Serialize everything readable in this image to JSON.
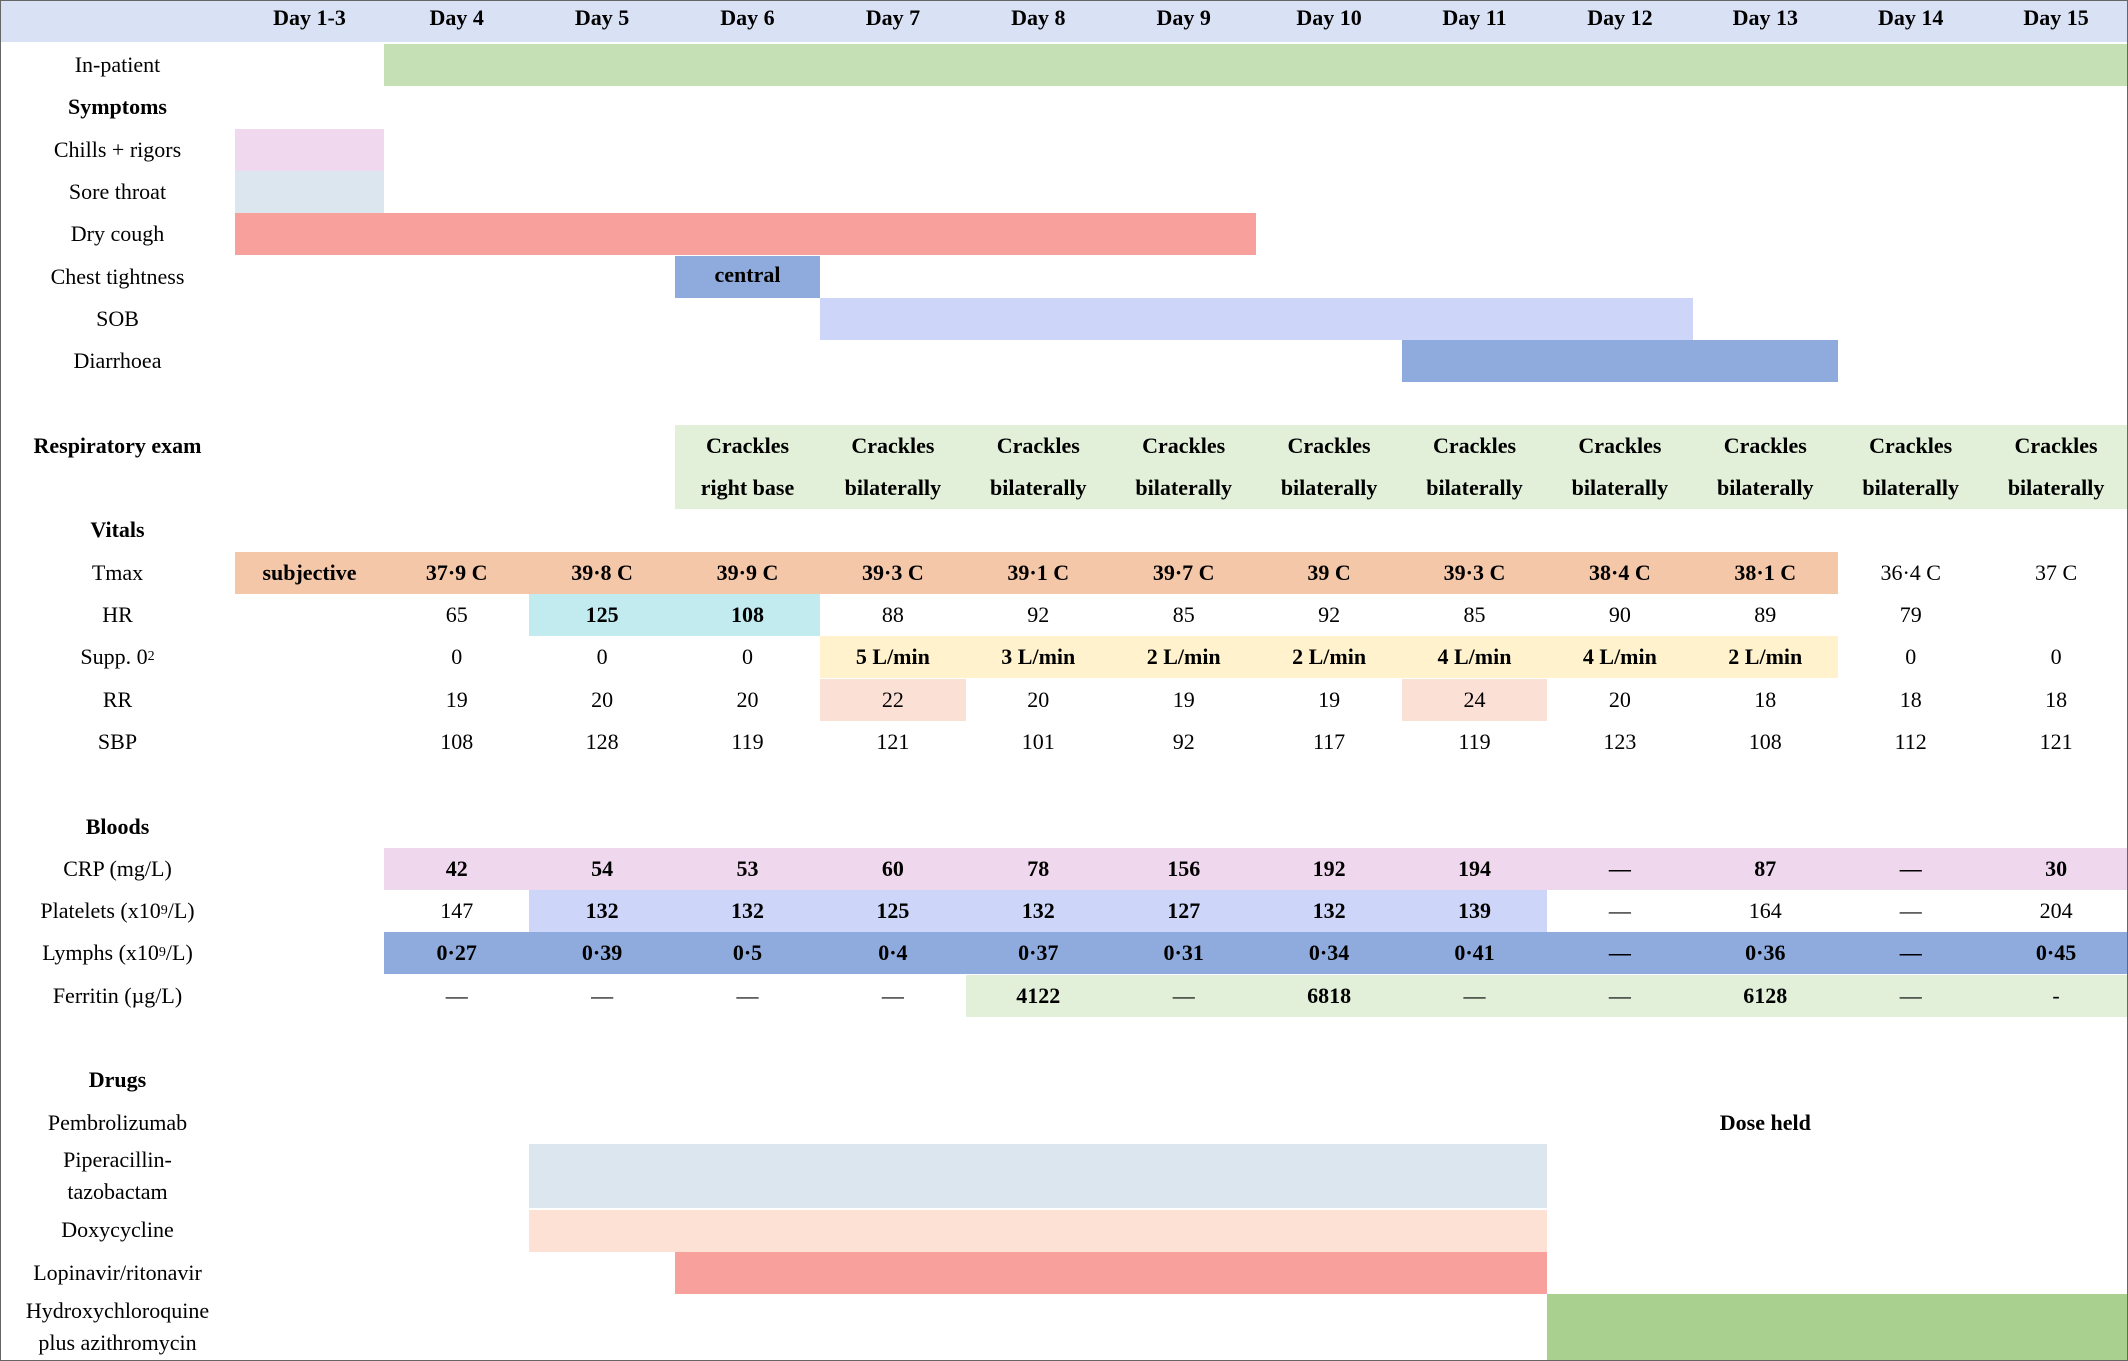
{
  "days": [
    "Day 1-3",
    "Day 4",
    "Day 5",
    "Day 6",
    "Day 7",
    "Day 8",
    "Day 9",
    "Day 10",
    "Day 11",
    "Day 12",
    "Day 13",
    "Day 14",
    "Day 15"
  ],
  "colors": {
    "header": "#d9e1f5",
    "inpatient": "#c5e0b4",
    "chills": "#f0d9ee",
    "sore_throat": "#dce6ee",
    "dry_cough": "#f8a09c",
    "chest_tightness": "#8faadc",
    "sob": "#cdd5f8",
    "diarrhoea": "#8faadc",
    "resp_exam": "#e2f0d9",
    "tmax": "#f4c7a9",
    "hr": "#c2ebf0",
    "supp_o2": "#fff2cc",
    "rr": "#fbe0d5",
    "crp": "#efd8ee",
    "platelets": "#cdd5f8",
    "lymphs": "#8faadc",
    "ferritin": "#e2f0d9",
    "piperacillin": "#dce6ee",
    "doxycycline": "#fde1d5",
    "lopinavir": "#f8a09c",
    "hcq": "#a9d08e"
  },
  "rows": {
    "inpatient": {
      "label": "In-patient"
    },
    "symptoms": {
      "label": "Symptoms"
    },
    "chills": {
      "label": "Chills + rigors"
    },
    "sore_throat": {
      "label": "Sore throat"
    },
    "dry_cough": {
      "label": "Dry cough"
    },
    "chest_tightness": {
      "label": "Chest tightness",
      "note": "central"
    },
    "sob": {
      "label": "SOB"
    },
    "diarrhoea": {
      "label": "Diarrhoea"
    },
    "resp_exam": {
      "label": "Respiratory exam",
      "values": [
        [
          "Crackles",
          "right base"
        ],
        [
          "Crackles",
          "bilaterally"
        ],
        [
          "Crackles",
          "bilaterally"
        ],
        [
          "Crackles",
          "bilaterally"
        ],
        [
          "Crackles",
          "bilaterally"
        ],
        [
          "Crackles",
          "bilaterally"
        ],
        [
          "Crackles",
          "bilaterally"
        ],
        [
          "Crackles",
          "bilaterally"
        ],
        [
          "Crackles",
          "bilaterally"
        ],
        [
          "Crackles",
          "bilaterally"
        ]
      ]
    },
    "vitals": {
      "label": "Vitals"
    },
    "tmax": {
      "label": "Tmax",
      "values": [
        "subjective",
        "37·9 C",
        "39·8 C",
        "39·9 C",
        "39·3 C",
        "39·1 C",
        "39·7 C",
        "39 C",
        "39·3 C",
        "38·4 C",
        "38·1 C",
        "36·4  C",
        "37  C"
      ]
    },
    "hr": {
      "label": "HR",
      "values": [
        "",
        "65",
        "125",
        "108",
        "88",
        "92",
        "85",
        "92",
        "85",
        "90",
        "89",
        "79",
        ""
      ]
    },
    "supp_o2": {
      "label_main": "Supp. 0",
      "label_sub": "2",
      "values": [
        "",
        "0",
        "0",
        "0",
        "5 L/min",
        "3 L/min",
        "2 L/min",
        "2 L/min",
        "4 L/min",
        "4 L/min",
        "2 L/min",
        "0",
        "0"
      ]
    },
    "rr": {
      "label": "RR",
      "values": [
        "",
        "19",
        "20",
        "20",
        "22",
        "20",
        "19",
        "19",
        "24",
        "20",
        "18",
        "18",
        "18"
      ]
    },
    "sbp": {
      "label": "SBP",
      "values": [
        "",
        "108",
        "128",
        "119",
        "121",
        "101",
        "92",
        "117",
        "119",
        "123",
        "108",
        "112",
        "121"
      ]
    },
    "bloods": {
      "label": "Bloods"
    },
    "crp": {
      "label": "CRP (mg/L)",
      "values": [
        "",
        "42",
        "54",
        "53",
        "60",
        "78",
        "156",
        "192",
        "194",
        "—",
        "87",
        "—",
        "30"
      ]
    },
    "platelets": {
      "label_main": "Platelets (x10",
      "label_sup": "9",
      "label_end": "/L)",
      "values": [
        "",
        "147",
        "132",
        "132",
        "125",
        "132",
        "127",
        "132",
        "139",
        "—",
        "164",
        "—",
        "204"
      ]
    },
    "lymphs": {
      "label_main": "Lymphs (x10",
      "label_sup": "9",
      "label_end": "/L)",
      "values": [
        "",
        "0·27",
        "0·39",
        "0·5",
        "0·4",
        "0·37",
        "0·31",
        "0·34",
        "0·41",
        "—",
        "0·36",
        "—",
        "0·45"
      ]
    },
    "ferritin": {
      "label": "Ferritin (µg/L)",
      "values": [
        "",
        "—",
        "—",
        "—",
        "—",
        "4122",
        "—",
        "6818",
        "—",
        "—",
        "6128",
        "—",
        "-"
      ]
    },
    "drugs": {
      "label": "Drugs"
    },
    "pembrolizumab": {
      "label": "Pembrolizumab",
      "note": "Dose held"
    },
    "piperacillin": {
      "label_1": "Piperacillin-",
      "label_2": "tazobactam"
    },
    "doxycycline": {
      "label": "Doxycycline"
    },
    "lopinavir": {
      "label": "Lopinavir/ritonavir"
    },
    "hcq": {
      "label_1": "Hydroxychloroquine",
      "label_2": "plus azithromycin"
    }
  }
}
